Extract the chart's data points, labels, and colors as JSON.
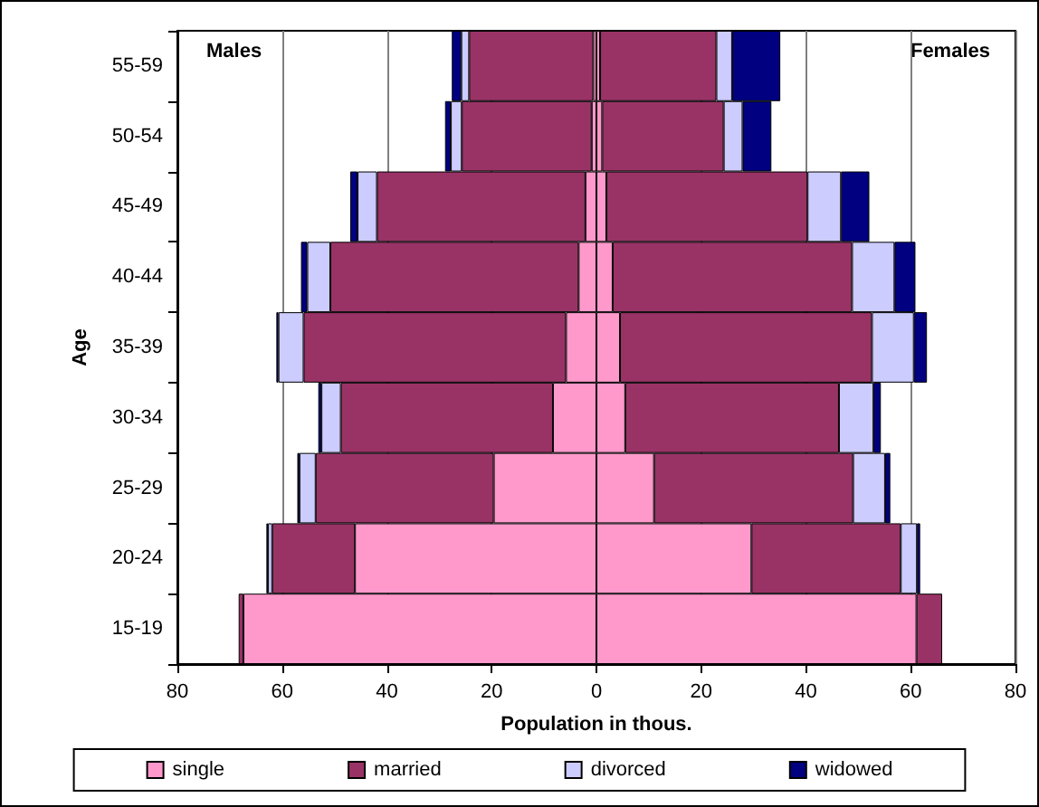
{
  "chart_data": {
    "type": "bar",
    "orientation": "horizontal",
    "stacked": true,
    "categories": [
      "55-59",
      "50-54",
      "45-49",
      "40-44",
      "35-39",
      "30-34",
      "25-29",
      "20-24",
      "15-19"
    ],
    "xlabel": "Population in thous.",
    "ylabel": "Age",
    "annotations": [
      "Males",
      "Females"
    ],
    "series": [
      {
        "name": "single",
        "color": "#ff99cc",
        "values": [
          -0.6,
          -0.9,
          -2.1,
          -3.4,
          -5.8,
          -8.3,
          -19.6,
          -46.1,
          -67.4
        ]
      },
      {
        "name": "married",
        "color": "#993366",
        "values": [
          -23.7,
          -24.8,
          -39.8,
          -47.4,
          -50.1,
          -40.5,
          -34.0,
          -15.8,
          -0.9
        ]
      },
      {
        "name": "divorced",
        "color": "#ccccff",
        "values": [
          -1.5,
          -2.1,
          -3.7,
          -4.4,
          -4.8,
          -3.7,
          -3.1,
          -0.8,
          null
        ]
      },
      {
        "name": "widowed",
        "color": "#000080",
        "values": [
          -1.8,
          -1.1,
          -1.4,
          -1.2,
          -0.4,
          -0.6,
          -0.4,
          -0.3,
          null
        ]
      },
      {
        "color": "#ff99cc",
        "values": [
          0.7,
          1.1,
          1.9,
          3.1,
          4.5,
          5.5,
          11.0,
          29.6,
          61.1
        ]
      },
      {
        "color": "#993366",
        "values": [
          22.2,
          23.2,
          38.4,
          45.7,
          48.1,
          40.8,
          38.0,
          28.5,
          4.9
        ]
      },
      {
        "color": "#ccccff",
        "values": [
          3.0,
          3.6,
          6.4,
          8.1,
          8.0,
          6.6,
          6.1,
          3.1,
          null
        ]
      },
      {
        "color": "#000080",
        "values": [
          9.2,
          5.5,
          5.4,
          4.0,
          2.5,
          1.4,
          1.0,
          0.6,
          null
        ]
      }
    ],
    "xlim": [
      -80,
      80
    ],
    "xticks": [
      {
        "value": -80,
        "label": "80"
      },
      {
        "value": -60,
        "label": "60"
      },
      {
        "value": -40,
        "label": "40"
      },
      {
        "value": -20,
        "label": "20"
      },
      0,
      20,
      40,
      60,
      80
    ],
    "grid": "x",
    "legend": "bottom"
  }
}
